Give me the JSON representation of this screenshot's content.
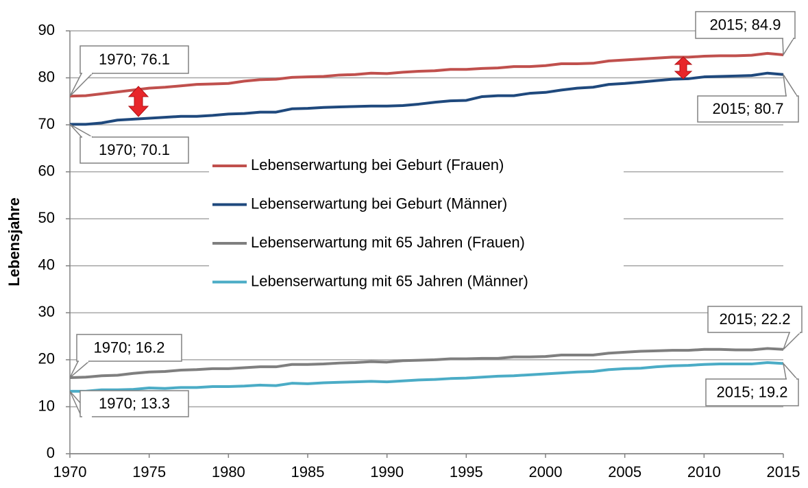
{
  "chart_data": {
    "type": "line",
    "ylabel": "Lebensjahre",
    "x": [
      1970,
      1971,
      1972,
      1973,
      1974,
      1975,
      1976,
      1977,
      1978,
      1979,
      1980,
      1981,
      1982,
      1983,
      1984,
      1985,
      1986,
      1987,
      1988,
      1989,
      1990,
      1991,
      1992,
      1993,
      1994,
      1995,
      1996,
      1997,
      1998,
      1999,
      2000,
      2001,
      2002,
      2003,
      2004,
      2005,
      2006,
      2007,
      2008,
      2009,
      2010,
      2011,
      2012,
      2013,
      2014,
      2015
    ],
    "xlim": [
      1970,
      2015
    ],
    "xticks": [
      1970,
      1975,
      1980,
      1985,
      1990,
      1995,
      2000,
      2005,
      2010,
      2015
    ],
    "ylim": [
      0,
      90
    ],
    "yticks": [
      0,
      10,
      20,
      30,
      40,
      50,
      60,
      70,
      80,
      90
    ],
    "grid": true,
    "series": [
      {
        "name": "Lebenserwartung bei Geburt (Frauen)",
        "color": "#c0504d",
        "values": [
          76.1,
          76.2,
          76.6,
          77.0,
          77.4,
          77.8,
          78.0,
          78.3,
          78.6,
          78.7,
          78.8,
          79.3,
          79.6,
          79.7,
          80.1,
          80.2,
          80.3,
          80.6,
          80.7,
          81.0,
          80.9,
          81.2,
          81.4,
          81.5,
          81.8,
          81.8,
          82.0,
          82.1,
          82.4,
          82.4,
          82.6,
          83.0,
          83.0,
          83.1,
          83.6,
          83.8,
          84.0,
          84.2,
          84.4,
          84.4,
          84.6,
          84.7,
          84.7,
          84.8,
          85.2,
          84.9
        ]
      },
      {
        "name": "Lebenserwartung bei Geburt (Männer)",
        "color": "#1f497d",
        "values": [
          70.1,
          70.1,
          70.4,
          71.0,
          71.2,
          71.4,
          71.6,
          71.8,
          71.8,
          72.0,
          72.3,
          72.4,
          72.7,
          72.7,
          73.4,
          73.5,
          73.7,
          73.8,
          73.9,
          74.0,
          74.0,
          74.1,
          74.4,
          74.8,
          75.1,
          75.2,
          76.0,
          76.2,
          76.2,
          76.7,
          76.9,
          77.4,
          77.8,
          78.0,
          78.6,
          78.8,
          79.1,
          79.4,
          79.7,
          79.8,
          80.2,
          80.3,
          80.4,
          80.5,
          81.0,
          80.7
        ]
      },
      {
        "name": "Lebenserwartung mit 65 Jahren (Frauen)",
        "color": "#7f7f7f",
        "values": [
          16.2,
          16.3,
          16.6,
          16.7,
          17.1,
          17.4,
          17.5,
          17.8,
          17.9,
          18.1,
          18.1,
          18.3,
          18.5,
          18.5,
          19.0,
          19.0,
          19.1,
          19.3,
          19.4,
          19.6,
          19.5,
          19.8,
          19.9,
          20.0,
          20.2,
          20.2,
          20.3,
          20.3,
          20.6,
          20.6,
          20.7,
          21.0,
          21.0,
          21.0,
          21.4,
          21.6,
          21.8,
          21.9,
          22.0,
          22.0,
          22.2,
          22.2,
          22.1,
          22.1,
          22.4,
          22.2
        ]
      },
      {
        "name": "Lebenserwartung mit 65 Jahren (Männer)",
        "color": "#4bacc6",
        "values": [
          13.3,
          13.3,
          13.6,
          13.6,
          13.7,
          14.0,
          13.9,
          14.1,
          14.1,
          14.3,
          14.3,
          14.4,
          14.6,
          14.5,
          15.0,
          14.9,
          15.1,
          15.2,
          15.3,
          15.4,
          15.3,
          15.5,
          15.7,
          15.8,
          16.0,
          16.1,
          16.3,
          16.5,
          16.6,
          16.8,
          17.0,
          17.2,
          17.4,
          17.5,
          17.9,
          18.1,
          18.2,
          18.5,
          18.7,
          18.8,
          19.0,
          19.1,
          19.1,
          19.1,
          19.4,
          19.2
        ]
      }
    ],
    "annotations": [
      "1970; 76.1",
      "1970; 70.1",
      "1970; 16.2",
      "1970; 13.3",
      "2015; 84.9",
      "2015; 80.7",
      "2015; 22.2",
      "2015; 19.2"
    ]
  }
}
